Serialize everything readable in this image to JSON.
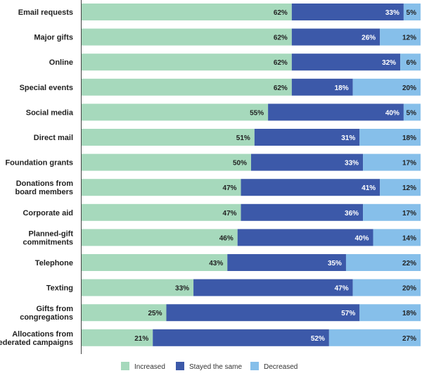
{
  "chart_data": {
    "type": "bar",
    "orientation": "horizontal",
    "stacked": true,
    "title": "",
    "xlabel": "",
    "ylabel": "",
    "xlim": [
      0,
      100
    ],
    "categories": [
      "Email requests",
      "Major gifts",
      "Online",
      "Special events",
      "Social media",
      "Direct mail",
      "Foundation grants",
      "Donations from\nboard members",
      "Corporate aid",
      "Planned-gift\ncommitments",
      "Telephone",
      "Texting",
      "Gifts from\ncongregations",
      "Allocations from\nfederated campaigns"
    ],
    "series": [
      {
        "name": "Increased",
        "color": "#a6d9bc",
        "label_color": "#222222",
        "values": [
          62,
          62,
          62,
          62,
          55,
          51,
          50,
          47,
          47,
          46,
          43,
          33,
          25,
          21
        ]
      },
      {
        "name": "Stayed the same",
        "color": "#3c59a9",
        "label_color": "#ffffff",
        "values": [
          33,
          26,
          32,
          18,
          40,
          31,
          33,
          41,
          36,
          40,
          35,
          47,
          57,
          52
        ]
      },
      {
        "name": "Decreased",
        "color": "#86bfea",
        "label_color": "#222222",
        "values": [
          5,
          12,
          6,
          20,
          5,
          18,
          17,
          12,
          17,
          14,
          22,
          20,
          18,
          27
        ]
      }
    ],
    "value_suffix": "%",
    "grid": false,
    "legend_position": "bottom"
  }
}
